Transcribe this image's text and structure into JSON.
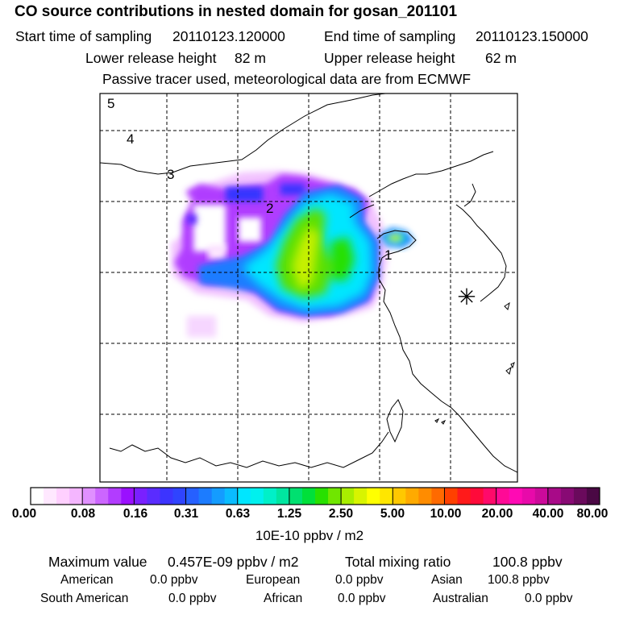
{
  "title": "CO  source contributions in nested domain for gosan_201101",
  "header": {
    "start_label": "Start time of sampling",
    "start_value": "20110123.120000",
    "end_label": "End time of sampling",
    "end_value": "20110123.150000",
    "lower_label": "Lower release height",
    "lower_value": "82 m",
    "upper_label": "Upper release height",
    "upper_value": "62 m",
    "note": "Passive tracer used, meteorological data are from ECMWF"
  },
  "map": {
    "contour_labels": [
      "5",
      "4",
      "3",
      "2",
      "1"
    ],
    "receptor_symbol": "✳"
  },
  "colorbar": {
    "tick_labels": [
      "0.00",
      "0.08",
      "0.16",
      "0.31",
      "0.63",
      "1.25",
      "2.50",
      "5.00",
      "10.00",
      "20.00",
      "40.00",
      "80.00"
    ],
    "units": "10E-10 ppbv / m2",
    "colors": [
      "#ffffff",
      "#ffe8ff",
      "#ffd0ff",
      "#f4b6ff",
      "#e090ff",
      "#cc66ff",
      "#b23cff",
      "#9a10ff",
      "#7a20ff",
      "#5a2cff",
      "#3c34ff",
      "#2f44ff",
      "#2660ff",
      "#1c7cff",
      "#149cff",
      "#0abcff",
      "#00e6ff",
      "#00f0ee",
      "#00f0c8",
      "#00e6a0",
      "#00e070",
      "#00e03a",
      "#28e000",
      "#70e600",
      "#a8ee00",
      "#d8f400",
      "#ffff00",
      "#ffe600",
      "#ffc800",
      "#ffaa00",
      "#ff8c00",
      "#ff6a00",
      "#ff4000",
      "#ff1a1a",
      "#ff0a3a",
      "#ff0a6a",
      "#ff0a96",
      "#ff0ab4",
      "#e80aaa",
      "#cc0a9a",
      "#a80a88",
      "#880a74",
      "#6a0a5c",
      "#4a0844"
    ]
  },
  "summary": {
    "max_label": "Maximum value",
    "max_value": "0.457E-09 ppbv / m2",
    "total_label": "Total mixing ratio",
    "total_value": "100.8 ppbv"
  },
  "regions": [
    {
      "name": "American",
      "value": "0.0 ppbv"
    },
    {
      "name": "European",
      "value": "0.0 ppbv"
    },
    {
      "name": "Asian",
      "value": "100.8 ppbv"
    },
    {
      "name": "South American",
      "value": "0.0 ppbv"
    },
    {
      "name": "African",
      "value": "0.0 ppbv"
    },
    {
      "name": "Australian",
      "value": "0.0 ppbv"
    }
  ]
}
